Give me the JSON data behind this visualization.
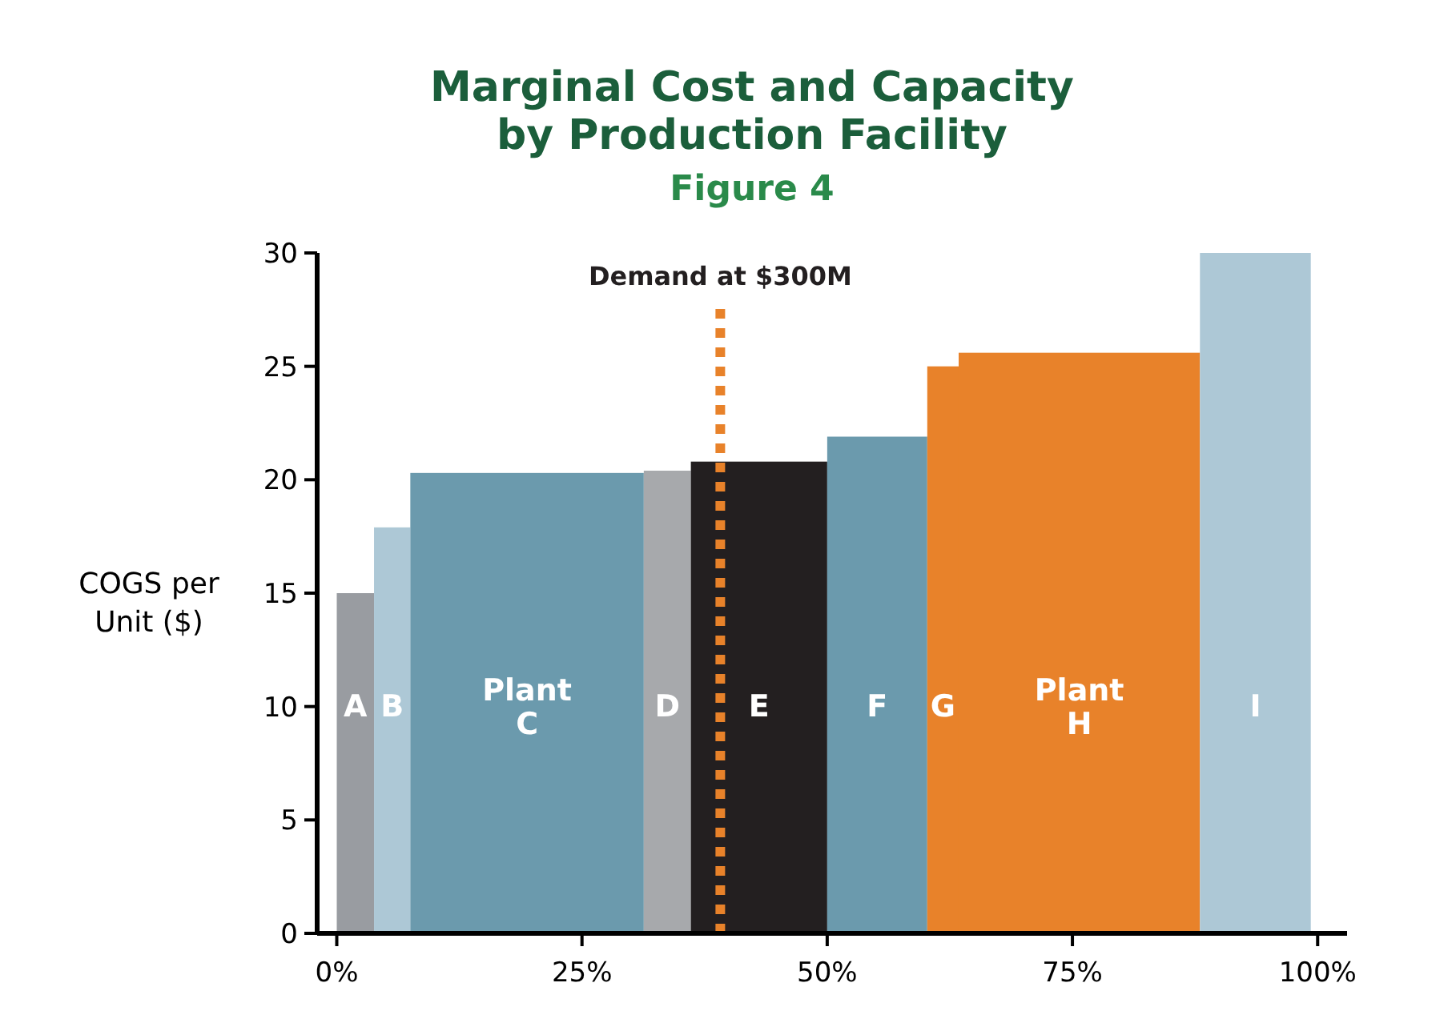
{
  "chart_data": {
    "type": "histogram",
    "title": "Marginal Cost and Capacity\nby Production Facility",
    "subtitle": "Figure 4",
    "ylabel": "COGS per\nUnit ($)",
    "bins": [
      0,
      3.8,
      7.5,
      31.3,
      36.1,
      50,
      60.2,
      63.4,
      88,
      99.3
    ],
    "values": [
      15,
      17.9,
      20.3,
      20.4,
      20.8,
      21.9,
      25,
      25.6,
      30
    ],
    "colors": [
      "#999ca1",
      "#adc8d6",
      "#6b9aad",
      "#a7a9ac",
      "#231f20",
      "#6b9aad",
      "#e8822a",
      "#e8822a",
      "#adc8d6"
    ],
    "xlim": [
      -2,
      103
    ],
    "xticks": [
      {
        "value": 0,
        "label": "0%"
      },
      {
        "value": 25,
        "label": "25%"
      },
      {
        "value": 50,
        "label": "50%"
      },
      {
        "value": 75,
        "label": "75%"
      },
      {
        "value": 100,
        "label": "100%"
      }
    ],
    "ylim": [
      0,
      30
    ],
    "yticks": [
      0,
      5,
      10,
      15,
      20,
      25,
      30
    ],
    "grid": false,
    "ref_lines": [
      {
        "axis": "x",
        "value": 39.1,
        "label": "Demand at $300M",
        "color": "#e8822a",
        "line_style": "dotted"
      }
    ],
    "annotations": [
      "A",
      "B",
      "Plant C",
      "D",
      "E",
      "F",
      "G",
      "Plant H",
      "I"
    ]
  }
}
